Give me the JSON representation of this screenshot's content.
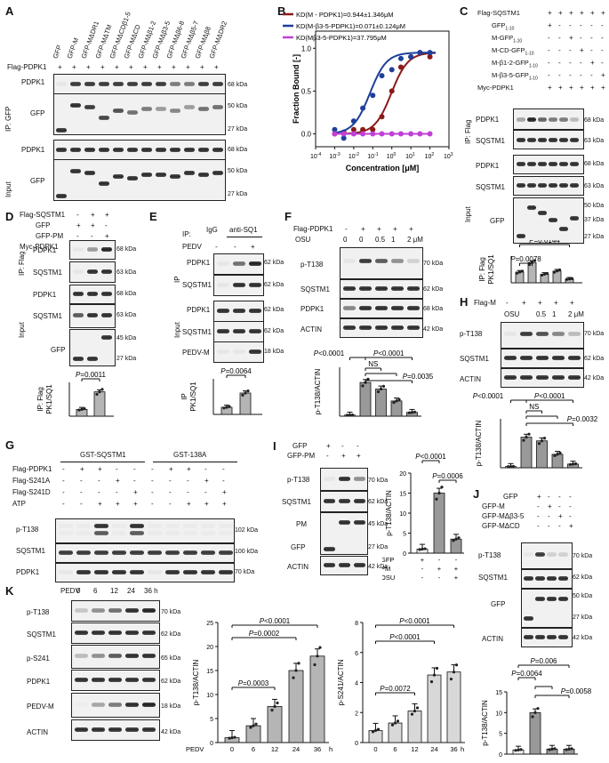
{
  "panels": {
    "A": {
      "letter": "A",
      "lanes": [
        "GFP",
        "GFP-M",
        "GFP-MΔDR1",
        "GFP-MΔTM",
        "GFP-MΔCDβ1-5",
        "GFP-MΔCD",
        "GFP-MΔβ1-2",
        "GFP-MΔβ3-5",
        "GFP-MΔβ6-8",
        "GFP-MΔβ5-7",
        "GFP-MΔβ8",
        "GFP-MΔDR2"
      ],
      "flag_label": "Flag-PDPK1",
      "ip_label": "IP: GFP",
      "input_label": "Input",
      "row1": "PDPK1",
      "row2": "GFP",
      "row3": "PDPK1",
      "row4": "GFP",
      "kda68": "68 kDa",
      "kda50": "50 kDa",
      "kda27": "27 kDa"
    },
    "B": {
      "letter": "B",
      "legend": [
        "KD(M - PDPK1)=0.944±1.346μM",
        "KD(M-β3-5-PDPK1)=0.071±0.124μM",
        "KD(Mβ3-5-PDPK1)=37.795μM"
      ],
      "ylabel": "Fraction Bound [-]",
      "xlabel": "Concentration [μM]",
      "yticks": [
        "0.0",
        "0.5",
        "1.0"
      ],
      "xticks": [
        "10-4",
        "10-3",
        "10-2",
        "10-1",
        "100",
        "101",
        "102",
        "103"
      ]
    },
    "C": {
      "letter": "C",
      "rows": [
        "Flag-SQSTM1",
        "GFP1-10",
        "M-GFP1-10",
        "M-CD-GFP1-10",
        "M-β1-2-GFP1-10",
        "M-β3-5-GFP1-10",
        "Myc-PDPK1"
      ],
      "ip_label": "IP: Flag",
      "input_label": "Input",
      "blots": [
        "PDPK1",
        "SQSTM1",
        "PDPK1",
        "SQSTM1",
        "GFP"
      ],
      "kda": [
        "68 kDa",
        "63 kDa",
        "68 kDa",
        "63 kDa",
        "50 kDa",
        "37 kDa",
        "27 kDa"
      ],
      "bar_ylabel": "PK1/SQ1",
      "bar_iplabel": "IP: Flag",
      "p1": "P=0.0078",
      "p2": "P=0.0144"
    },
    "D": {
      "letter": "D",
      "rows": [
        "Flag-SQSTM1",
        "GFP",
        "GFP-PM",
        "Myc-PDPK1"
      ],
      "ip_label": "IP: Flag",
      "input_label": "Input",
      "blots": [
        "PDPK1",
        "SQSTM1",
        "PDPK1",
        "SQSTM1",
        "GFP"
      ],
      "kda": [
        "68 kDa",
        "63 kDa",
        "68 kDa",
        "63 kDa",
        "45 kDa",
        "27 kDa"
      ],
      "bar_ylabel": "PK1/SQ1",
      "bar_iplabel": "IP: Flag",
      "p": "P=0.0011"
    },
    "E": {
      "letter": "E",
      "ip": "IP:",
      "igg": "IgG",
      "antisq": "anti-SQ1",
      "pedv": "PEDV",
      "blots": [
        "PDPK1",
        "SQSTM1",
        "PDPK1",
        "SQSTM1",
        "PEDV-M"
      ],
      "ip_label": "IP",
      "input_label": "Input",
      "kda": [
        "62 kDa",
        "62 kDa",
        "62 kDa",
        "62 kDa",
        "18 kDa"
      ],
      "bar_ylabel": "PK1/SQ1",
      "bar_iplabel": "IP",
      "p": "P=0.0064"
    },
    "F": {
      "letter": "F",
      "flag": "Flag-PDPK1",
      "osu": "OSU",
      "conc": [
        "0",
        "0",
        "0.5",
        "1",
        "2 μM"
      ],
      "blots": [
        "p-T138",
        "SQSTM1",
        "PDPK1",
        "ACTIN"
      ],
      "kda": [
        "70 kDa",
        "62 kDa",
        "68 kDa",
        "42 kDa"
      ],
      "ylabel": "p-T138/ACTIN",
      "p": [
        "P<0.0001",
        "P<0.0001",
        "NS",
        "P=0.0035"
      ]
    },
    "G": {
      "letter": "G",
      "gst1": "GST-SQSTM1",
      "gst2": "GST-138A",
      "rows": [
        "Flag-PDPK1",
        "Flag-S241A",
        "Flag-S241D",
        "ATP"
      ],
      "blots": [
        "p-T138",
        "SQSTM1",
        "PDPK1"
      ],
      "kda": [
        "102 kDa",
        "100 kDa",
        "70 kDa"
      ]
    },
    "H": {
      "letter": "H",
      "flag": "Flag-M",
      "osu": "OSU",
      "conc": [
        "0.5",
        "1",
        "2 μM"
      ],
      "blots": [
        "p-T138",
        "SQSTM1",
        "ACTIN"
      ],
      "kda": [
        "70 kDa",
        "62 kDa",
        "42 kDa"
      ],
      "ylabel": "p-T138/ACTIN",
      "p": [
        "P<0.0001",
        "P<0.0001",
        "NS",
        "P=0.0032"
      ]
    },
    "I": {
      "letter": "I",
      "rows": [
        "GFP",
        "GFP-PM",
        "OSU"
      ],
      "blots": [
        "p-T138",
        "SQSTM1",
        "PM",
        "GFP",
        "ACTIN"
      ],
      "kda": [
        "70 kDa",
        "62 kDa",
        "45 kDa",
        "27 kDa",
        "42 kDa"
      ],
      "ylabel": "p-T138/ACTIN",
      "xrows": [
        "GFP",
        "PM",
        "OSU"
      ],
      "p": [
        "P<0.0001",
        "P=0.0006"
      ]
    },
    "J": {
      "letter": "J",
      "rows": [
        "GFP",
        "GFP-M",
        "GFP-MΔβ3-5",
        "GFP-MΔCD"
      ],
      "blots": [
        "p-T138",
        "SQSTM1",
        "GFP",
        "ACTIN"
      ],
      "kda": [
        "70 kDa",
        "62 kDa",
        "50 kDa",
        "27 kDa",
        "42 kDa"
      ],
      "ylabel": "p-T138/ACTIN",
      "p": [
        "P=0.006",
        "P=0.0064",
        "P=0.0058"
      ]
    },
    "K": {
      "letter": "K",
      "pedv": "PEDV",
      "times": [
        "0",
        "6",
        "12",
        "24",
        "36 h"
      ],
      "blots": [
        "p-T138",
        "SQSTM1",
        "p-S241",
        "PDPK1",
        "PEDV-M",
        "ACTIN"
      ],
      "kda": [
        "70 kDa",
        "62 kDa",
        "65 kDa",
        "62 kDa",
        "18 kDa",
        "42 kDa"
      ],
      "chart1_ylabel": "p-T138/ACTIN",
      "chart1_p": [
        "P<0.0001",
        "P=0.0002",
        "P=0.0003"
      ],
      "chart2_ylabel": "p-S241/ACTIN",
      "chart2_p": [
        "P<0.0001",
        "P<0.0001",
        "P=0.0072"
      ],
      "xlabel_pedv": "PEDV",
      "xunit": "h"
    }
  },
  "chart_data": [
    {
      "type": "scatter",
      "title": "",
      "xlabel": "Concentration [μM]",
      "ylabel": "Fraction Bound [-]",
      "xscale": "log",
      "xlim": [
        0.0001,
        1000
      ],
      "ylim": [
        -0.15,
        1.2
      ],
      "series": [
        {
          "name": "KD(M - PDPK1)=0.944±1.346μM",
          "color": "#8b1a1a",
          "x": [
            0.001,
            0.003,
            0.01,
            0.03,
            0.1,
            0.3,
            1,
            3,
            10,
            30,
            100
          ],
          "y": [
            0.0,
            0.02,
            0.05,
            0.05,
            0.05,
            0.2,
            0.5,
            0.78,
            0.9,
            0.95,
            0.9
          ]
        },
        {
          "name": "KD(M-β3-5-PDPK1)=0.071±0.124μM",
          "color": "#1f3f9a",
          "x": [
            0.001,
            0.003,
            0.01,
            0.03,
            0.1,
            0.3,
            1,
            3,
            10,
            30,
            100
          ],
          "y": [
            0.05,
            -0.05,
            0.15,
            0.3,
            0.45,
            0.68,
            0.75,
            0.88,
            0.9,
            0.95,
            0.95
          ]
        },
        {
          "name": "KD(Mβ3-5-PDPK1)=37.795μM",
          "color": "#c03fd6",
          "x": [
            0.001,
            0.003,
            0.01,
            0.03,
            0.1,
            0.3,
            1,
            3,
            10,
            30,
            100
          ],
          "y": [
            0,
            0,
            0,
            0,
            0,
            0,
            0,
            0,
            0,
            0,
            0
          ]
        }
      ],
      "legend_position": "top-left"
    },
    {
      "type": "bar",
      "panel": "C",
      "ylabel": "PK1/SQ1",
      "values": [
        1.0,
        1.9,
        0.8,
        1.1,
        0.35
      ],
      "ylim": [
        0,
        2.5
      ]
    },
    {
      "type": "bar",
      "panel": "D",
      "ylabel": "PK1/SQ1",
      "values": [
        1.0,
        3.6
      ],
      "ylim": [
        0,
        5
      ]
    },
    {
      "type": "bar",
      "panel": "E",
      "ylabel": "PK1/SQ1",
      "values": [
        1.0,
        3.0
      ],
      "ylim": [
        0,
        5
      ]
    },
    {
      "type": "bar",
      "panel": "F",
      "ylabel": "p-T138/ACTIN",
      "values": [
        1.0,
        31,
        25,
        14,
        3.5
      ],
      "ylim": [
        0,
        45
      ]
    },
    {
      "type": "bar",
      "panel": "H",
      "ylabel": "p-T138/ACTIN",
      "values": [
        1.0,
        25,
        22,
        11,
        3
      ],
      "ylim": [
        0,
        40
      ]
    },
    {
      "type": "bar",
      "panel": "I",
      "ylabel": "p-T138/ACTIN",
      "values": [
        1.0,
        15,
        3.5
      ],
      "ylim": [
        0,
        20
      ]
    },
    {
      "type": "bar",
      "panel": "J",
      "ylabel": "p-T138/ACTIN",
      "values": [
        1.0,
        10,
        1.2,
        1.2
      ],
      "ylim": [
        0,
        15
      ]
    },
    {
      "type": "bar",
      "panel": "K1",
      "ylabel": "p-T138/ACTIN",
      "categories": [
        "0",
        "6",
        "12",
        "24",
        "36"
      ],
      "values": [
        1.0,
        3.5,
        7.5,
        15,
        18
      ],
      "ylim": [
        0,
        25
      ]
    },
    {
      "type": "bar",
      "panel": "K2",
      "ylabel": "p-S241/ACTIN",
      "categories": [
        "0",
        "6",
        "12",
        "24",
        "36"
      ],
      "values": [
        0.8,
        1.3,
        2.1,
        4.5,
        4.7
      ],
      "ylim": [
        0,
        8
      ]
    }
  ]
}
